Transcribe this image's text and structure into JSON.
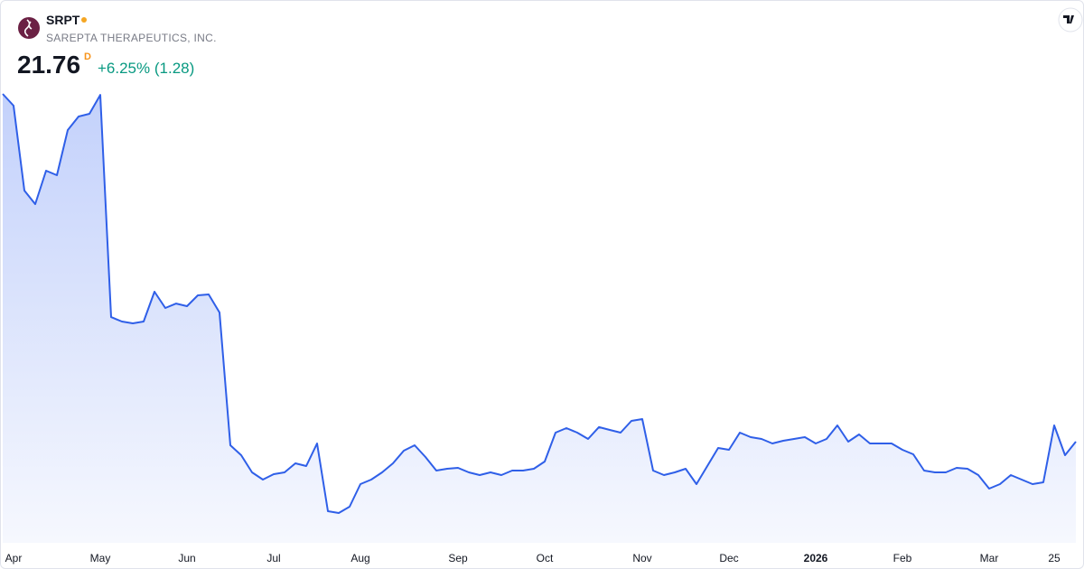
{
  "chart_data": {
    "type": "area",
    "symbol": "SRPT",
    "company": "SAREPTA THERAPEUTICS, INC.",
    "price": "21.76",
    "interval": "D",
    "change": "+6.25% (1.28)",
    "color": "#2f5fe8",
    "categories": [
      null,
      "Apr",
      null,
      null,
      null,
      null,
      null,
      null,
      null,
      "May",
      null,
      null,
      null,
      null,
      null,
      null,
      null,
      "Jun",
      null,
      null,
      null,
      null,
      null,
      null,
      null,
      "Jul",
      null,
      null,
      null,
      null,
      null,
      null,
      null,
      "Aug",
      null,
      null,
      null,
      null,
      null,
      null,
      null,
      null,
      "Sep",
      null,
      null,
      null,
      null,
      null,
      null,
      null,
      "Oct",
      null,
      null,
      null,
      null,
      null,
      null,
      null,
      null,
      "Nov",
      null,
      null,
      null,
      null,
      null,
      null,
      null,
      "Dec",
      null,
      null,
      null,
      null,
      null,
      null,
      null,
      "2026",
      null,
      null,
      null,
      null,
      null,
      null,
      null,
      "Feb",
      null,
      null,
      null,
      null,
      null,
      null,
      null,
      "Mar",
      null,
      null,
      null,
      null,
      null,
      "25",
      null,
      null
    ],
    "values": [
      54.61,
      53.5,
      45.48,
      44.2,
      47.36,
      46.93,
      51.2,
      52.48,
      52.73,
      54.52,
      33.53,
      33.11,
      32.94,
      33.11,
      35.92,
      34.39,
      34.81,
      34.56,
      35.58,
      35.67,
      33.96,
      21.42,
      20.48,
      18.86,
      18.18,
      18.69,
      18.86,
      19.71,
      19.46,
      21.59,
      15.19,
      15.02,
      15.62,
      17.75,
      18.18,
      18.86,
      19.71,
      20.91,
      21.42,
      20.31,
      19.03,
      19.2,
      19.29,
      18.86,
      18.6,
      18.86,
      18.6,
      19.03,
      19.03,
      19.2,
      19.88,
      22.61,
      23.04,
      22.61,
      22.02,
      23.13,
      22.87,
      22.61,
      23.72,
      23.89,
      19.03,
      18.6,
      18.86,
      19.2,
      17.75,
      19.46,
      21.16,
      20.99,
      22.61,
      22.19,
      22.02,
      21.59,
      21.85,
      22.02,
      22.19,
      21.59,
      22.02,
      23.3,
      21.76,
      22.44,
      21.59,
      21.59,
      21.59,
      20.99,
      20.57,
      19.03,
      18.86,
      18.86,
      19.29,
      19.2,
      18.6,
      17.32,
      17.75,
      18.6,
      18.18,
      17.75,
      17.92,
      23.3,
      20.48,
      21.76
    ]
  }
}
